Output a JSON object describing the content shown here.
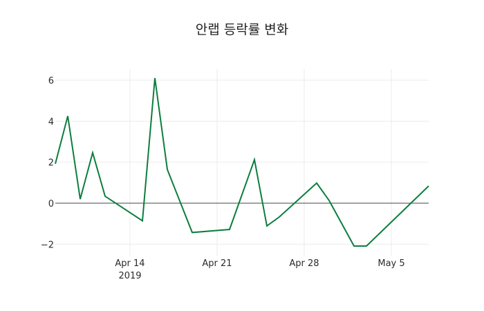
{
  "chart_data": {
    "type": "line",
    "title": "안랩 등락률 변화",
    "xlabel": "",
    "ylabel": "",
    "x": [
      "2019-04-08",
      "2019-04-09",
      "2019-04-10",
      "2019-04-11",
      "2019-04-12",
      "2019-04-15",
      "2019-04-16",
      "2019-04-17",
      "2019-04-19",
      "2019-04-22",
      "2019-04-24",
      "2019-04-25",
      "2019-04-26",
      "2019-04-29",
      "2019-04-30",
      "2019-05-02",
      "2019-05-03",
      "2019-05-08"
    ],
    "series": [
      {
        "name": "등락률",
        "color": "#0b7d3e",
        "values": [
          1.92,
          4.25,
          0.2,
          2.46,
          0.34,
          -0.86,
          6.1,
          1.64,
          -1.43,
          -1.28,
          2.12,
          -1.11,
          -0.67,
          0.98,
          0.13,
          -2.09,
          -2.09,
          0.84
        ]
      }
    ],
    "x_ticks": [
      {
        "date": "2019-04-14",
        "label": "Apr 14",
        "sublabel": "2019"
      },
      {
        "date": "2019-04-21",
        "label": "Apr 21"
      },
      {
        "date": "2019-04-28",
        "label": "Apr 28"
      },
      {
        "date": "2019-05-05",
        "label": "May 5"
      }
    ],
    "y_ticks": [
      -2,
      0,
      2,
      4,
      6
    ],
    "y_tick_labels": [
      "−2",
      "0",
      "2",
      "4",
      "6"
    ],
    "ylim": [
      -2.6,
      6.6
    ],
    "xlim": [
      "2019-04-08",
      "2019-05-08"
    ],
    "grid": true,
    "zero_line": true,
    "legend": false
  }
}
